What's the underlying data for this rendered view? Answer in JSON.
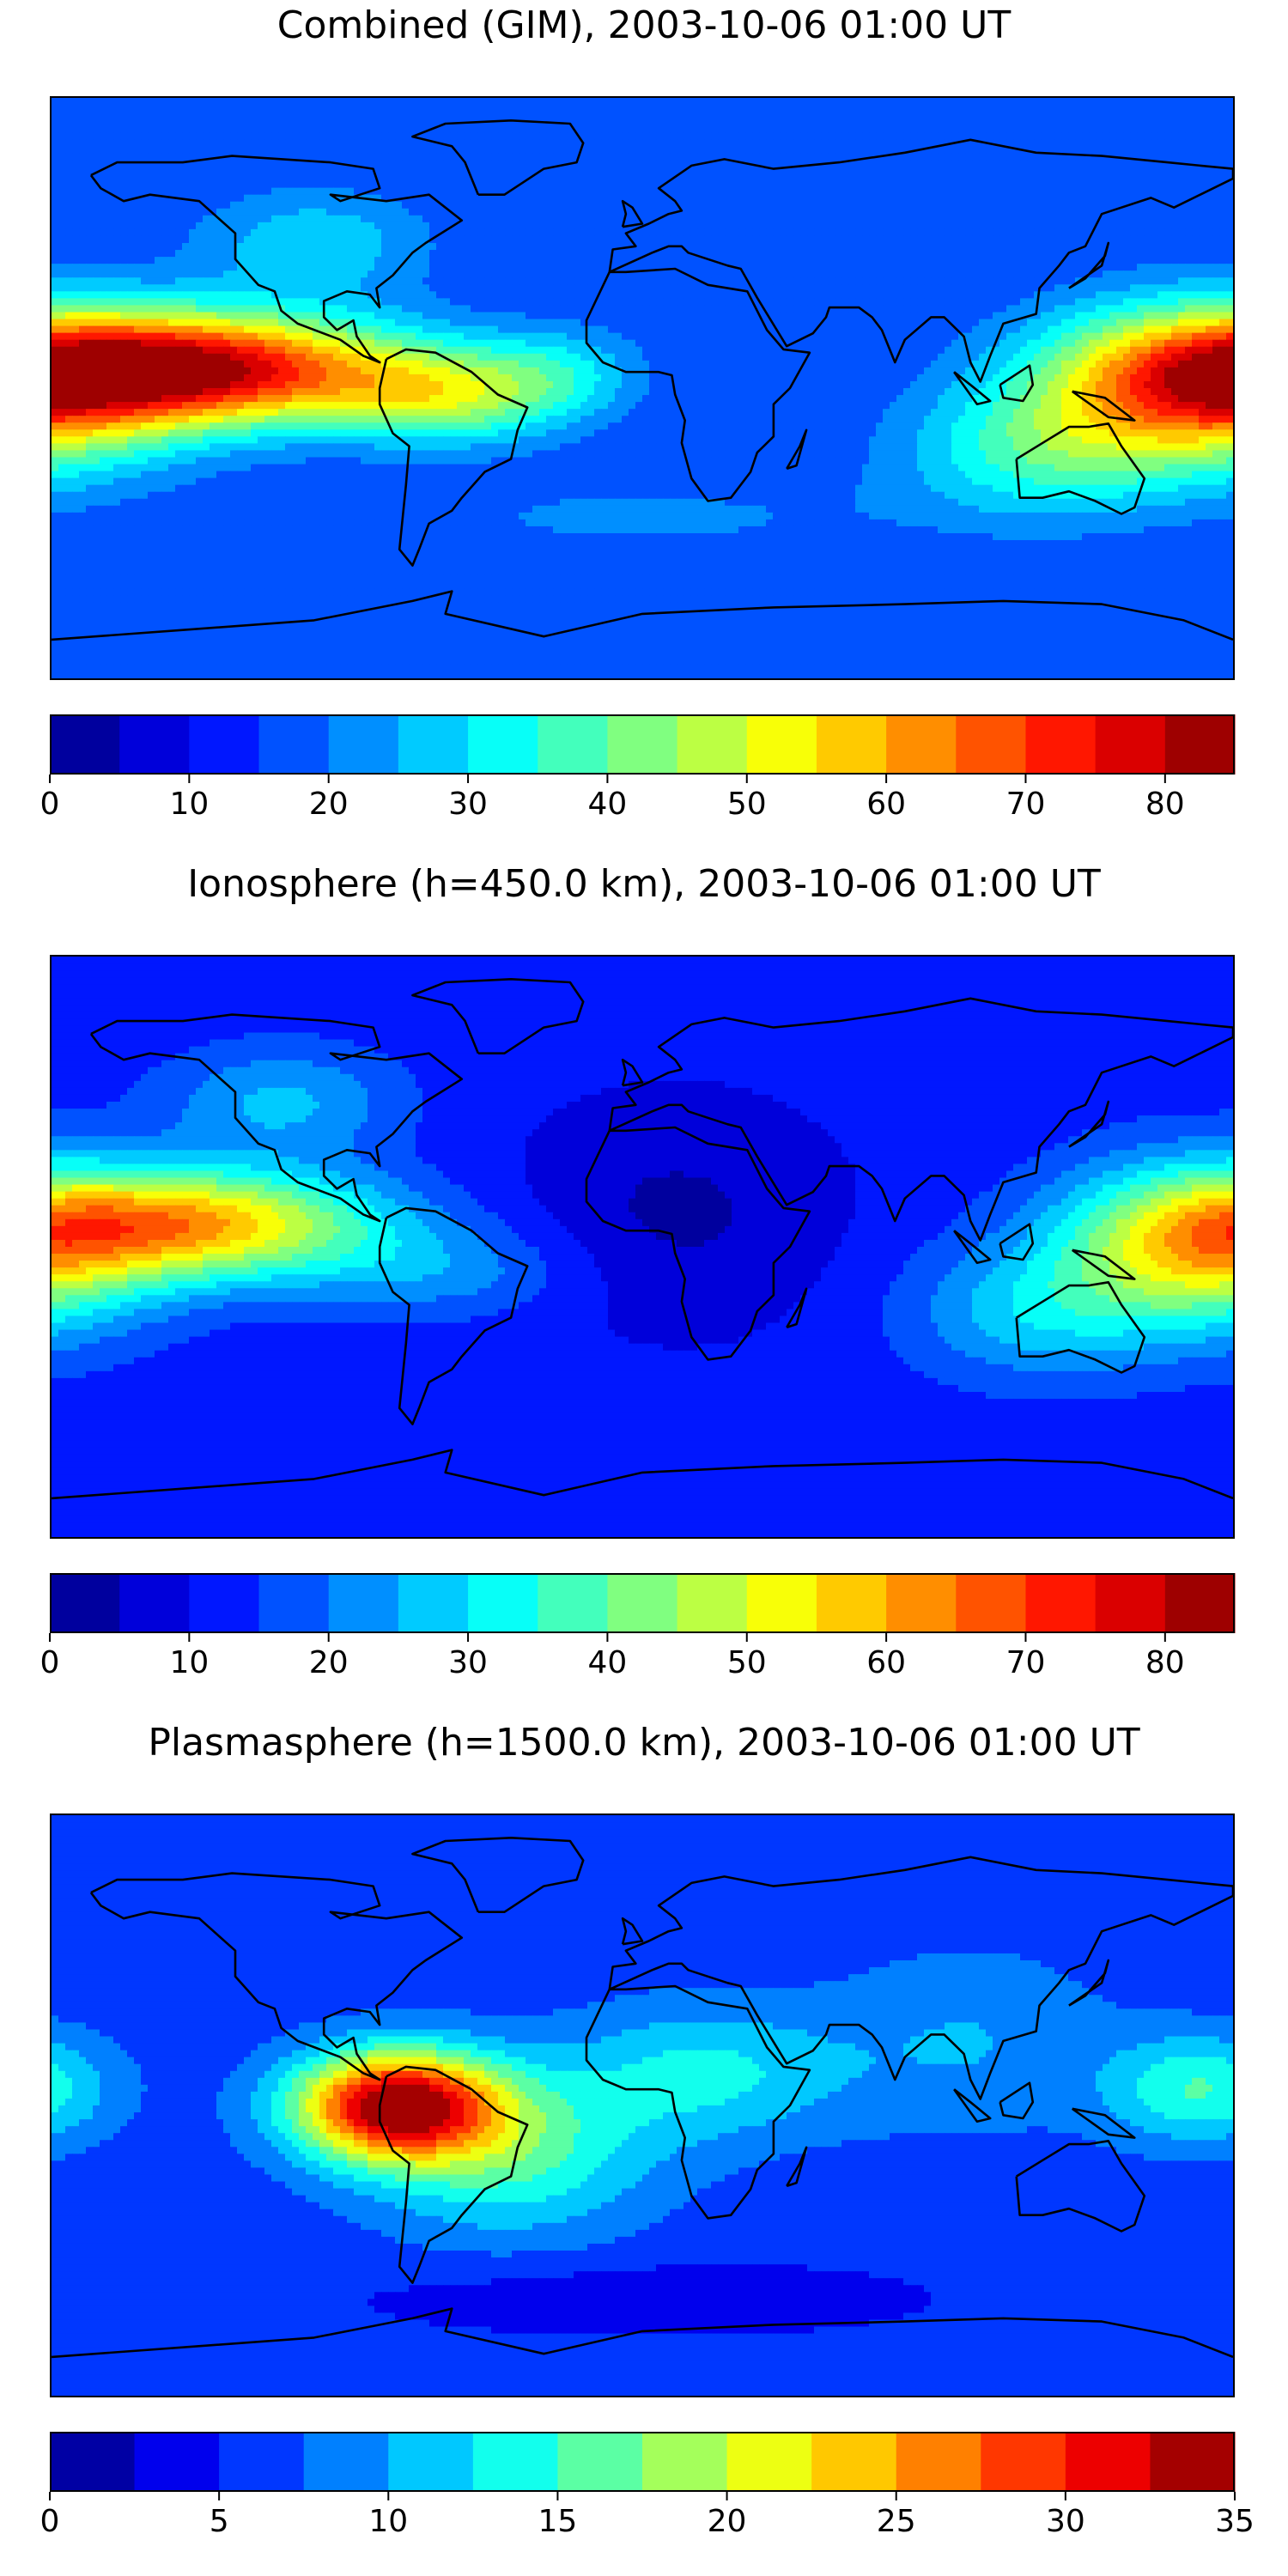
{
  "panels": [
    {
      "title": "Combined (GIM), 2003-10-06 01:00 UT",
      "colorbar": {
        "ticks": [
          0,
          10,
          20,
          30,
          40,
          50,
          60,
          70,
          80
        ],
        "levels": 17,
        "max": 85
      },
      "field": {
        "base": 15,
        "blobs": [
          {
            "lon": -135,
            "lat": 6,
            "amp": 62,
            "sx": 45,
            "sy": 12
          },
          {
            "lon": -60,
            "lat": -3,
            "amp": 26,
            "sx": 25,
            "sy": 10
          },
          {
            "lon": -25,
            "lat": 5,
            "amp": 12,
            "sx": 18,
            "sy": 10
          },
          {
            "lon": 170,
            "lat": 0,
            "amp": 45,
            "sx": 35,
            "sy": 18
          },
          {
            "lon": 120,
            "lat": -20,
            "amp": 18,
            "sx": 30,
            "sy": 15
          },
          {
            "lon": -100,
            "lat": 45,
            "amp": 14,
            "sx": 25,
            "sy": 12
          },
          {
            "lon": 0,
            "lat": -40,
            "amp": 6,
            "sx": 60,
            "sy": 10
          }
        ]
      }
    },
    {
      "title": "Ionosphere  (h=450.0 km), 2003-10-06 01:00 UT",
      "colorbar": {
        "ticks": [
          0,
          10,
          20,
          30,
          40,
          50,
          60,
          70,
          80
        ],
        "levels": 17,
        "max": 85
      },
      "field": {
        "base": 12,
        "blobs": [
          {
            "lon": -135,
            "lat": 7,
            "amp": 45,
            "sx": 40,
            "sy": 12
          },
          {
            "lon": -60,
            "lat": -8,
            "amp": 10,
            "sx": 30,
            "sy": 10
          },
          {
            "lon": 170,
            "lat": 0,
            "amp": 38,
            "sx": 30,
            "sy": 18
          },
          {
            "lon": 120,
            "lat": -20,
            "amp": 15,
            "sx": 28,
            "sy": 15
          },
          {
            "lon": -110,
            "lat": 45,
            "amp": 14,
            "sx": 25,
            "sy": 12
          },
          {
            "lon": 10,
            "lat": 10,
            "amp": -8,
            "sx": 35,
            "sy": 25
          }
        ]
      }
    },
    {
      "title": "Plasmasphere (h=1500.0 km), 2003-10-06 01:00 UT",
      "colorbar": {
        "ticks": [
          0,
          5,
          10,
          15,
          20,
          25,
          30,
          35
        ],
        "levels": 14,
        "max": 35
      },
      "field": {
        "base": 6,
        "blobs": [
          {
            "lon": -75,
            "lat": 0,
            "amp": 28,
            "sx": 22,
            "sy": 12
          },
          {
            "lon": -40,
            "lat": -15,
            "amp": 9,
            "sx": 30,
            "sy": 18
          },
          {
            "lon": 20,
            "lat": 10,
            "amp": 7,
            "sx": 30,
            "sy": 15
          },
          {
            "lon": 170,
            "lat": 5,
            "amp": 9,
            "sx": 20,
            "sy": 12
          },
          {
            "lon": 100,
            "lat": 20,
            "amp": 4,
            "sx": 30,
            "sy": 20
          },
          {
            "lon": 0,
            "lat": -60,
            "amp": -3,
            "sx": 60,
            "sy": 8
          }
        ]
      }
    }
  ]
}
